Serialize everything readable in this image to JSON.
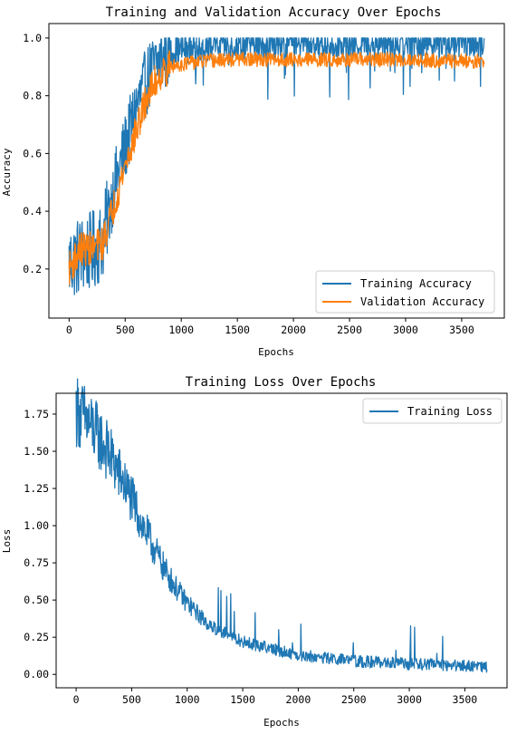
{
  "chart_data": [
    {
      "type": "line",
      "title": "Training and Validation Accuracy Over Epochs",
      "xlabel": "Epochs",
      "ylabel": "Accuracy",
      "xlim": [
        -180,
        3880
      ],
      "ylim": [
        0.03,
        1.05
      ],
      "xticks": [
        0,
        500,
        1000,
        1500,
        2000,
        2500,
        3000,
        3500
      ],
      "yticks": [
        0.2,
        0.4,
        0.6,
        0.8,
        1.0
      ],
      "ytick_labels": [
        "0.2",
        "0.4",
        "0.6",
        "0.8",
        "1.0"
      ],
      "grid": false,
      "legend_position": "lower-right",
      "series": [
        {
          "name": "Training Accuracy",
          "color": "#1f77b4",
          "noisy": true,
          "x": [
            0,
            100,
            200,
            300,
            400,
            500,
            600,
            700,
            800,
            900,
            1000,
            1200,
            1500,
            2000,
            2500,
            3000,
            3500,
            3700
          ],
          "y": [
            0.22,
            0.25,
            0.26,
            0.3,
            0.48,
            0.62,
            0.76,
            0.86,
            0.92,
            0.95,
            0.96,
            0.97,
            0.975,
            0.98,
            0.98,
            0.985,
            0.985,
            0.985
          ]
        },
        {
          "name": "Validation Accuracy",
          "color": "#ff7f0e",
          "noisy": true,
          "x": [
            0,
            100,
            200,
            300,
            400,
            500,
            600,
            700,
            800,
            900,
            1000,
            1200,
            1500,
            2000,
            2500,
            3000,
            3500,
            3700
          ],
          "y": [
            0.2,
            0.27,
            0.27,
            0.29,
            0.42,
            0.56,
            0.68,
            0.8,
            0.87,
            0.9,
            0.91,
            0.92,
            0.925,
            0.925,
            0.925,
            0.925,
            0.92,
            0.92
          ]
        }
      ]
    },
    {
      "type": "line",
      "title": "Training Loss Over Epochs",
      "xlabel": "Epochs",
      "ylabel": "Loss",
      "xlim": [
        -180,
        3880
      ],
      "ylim": [
        -0.09,
        1.89
      ],
      "xticks": [
        0,
        500,
        1000,
        1500,
        2000,
        2500,
        3000,
        3500
      ],
      "yticks": [
        0.0,
        0.25,
        0.5,
        0.75,
        1.0,
        1.25,
        1.5,
        1.75
      ],
      "ytick_labels": [
        "0.00",
        "0.25",
        "0.50",
        "0.75",
        "1.00",
        "1.25",
        "1.50",
        "1.75"
      ],
      "grid": false,
      "legend_position": "upper-right",
      "series": [
        {
          "name": "Training Loss",
          "color": "#1f77b4",
          "noisy": true,
          "x": [
            0,
            100,
            200,
            300,
            400,
            500,
            600,
            700,
            800,
            900,
            1000,
            1200,
            1500,
            2000,
            2500,
            3000,
            3500,
            3700
          ],
          "y": [
            1.78,
            1.7,
            1.6,
            1.48,
            1.33,
            1.18,
            1.0,
            0.85,
            0.7,
            0.58,
            0.48,
            0.33,
            0.22,
            0.13,
            0.09,
            0.07,
            0.06,
            0.05
          ]
        }
      ]
    }
  ]
}
